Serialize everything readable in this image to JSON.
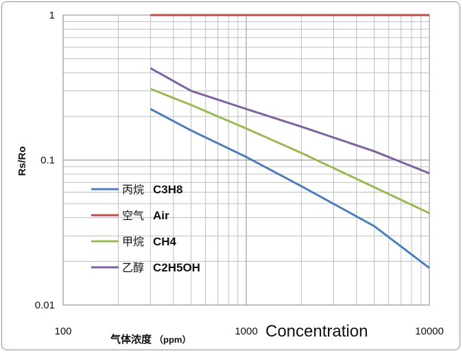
{
  "chart_data": {
    "type": "line",
    "x_scale": "log",
    "y_scale": "log",
    "xlim": [
      100,
      10000
    ],
    "ylim": [
      0.01,
      1
    ],
    "x_ticks": [
      "100",
      "1000",
      "10000"
    ],
    "y_ticks": [
      "1",
      "0.1",
      "0.01"
    ],
    "ylabel": "Rs/Ro",
    "xlabel_cn": "气体浓度",
    "xlabel_unit": "（ppm）",
    "xlabel_en": "Concentration",
    "grid": true,
    "legend_position": "lower-left",
    "series": [
      {
        "name_cn": "丙烷",
        "name": "C3H8",
        "color": "#4a7ebb",
        "x": [
          300,
          500,
          1000,
          2000,
          5000,
          10000
        ],
        "y": [
          0.225,
          0.16,
          0.105,
          0.066,
          0.035,
          0.018
        ]
      },
      {
        "name_cn": "空气",
        "name": "Air",
        "color": "#be4b48",
        "x": [
          300,
          10000
        ],
        "y": [
          1.0,
          1.0
        ]
      },
      {
        "name_cn": "甲烷",
        "name": "CH4",
        "color": "#98b954",
        "x": [
          300,
          500,
          1000,
          2000,
          5000,
          10000
        ],
        "y": [
          0.31,
          0.24,
          0.165,
          0.112,
          0.065,
          0.043
        ]
      },
      {
        "name_cn": "乙醇",
        "name": "C2H5OH",
        "color": "#7d60a0",
        "x": [
          300,
          500,
          1000,
          2000,
          5000,
          10000
        ],
        "y": [
          0.43,
          0.3,
          0.225,
          0.17,
          0.115,
          0.081
        ]
      }
    ]
  }
}
